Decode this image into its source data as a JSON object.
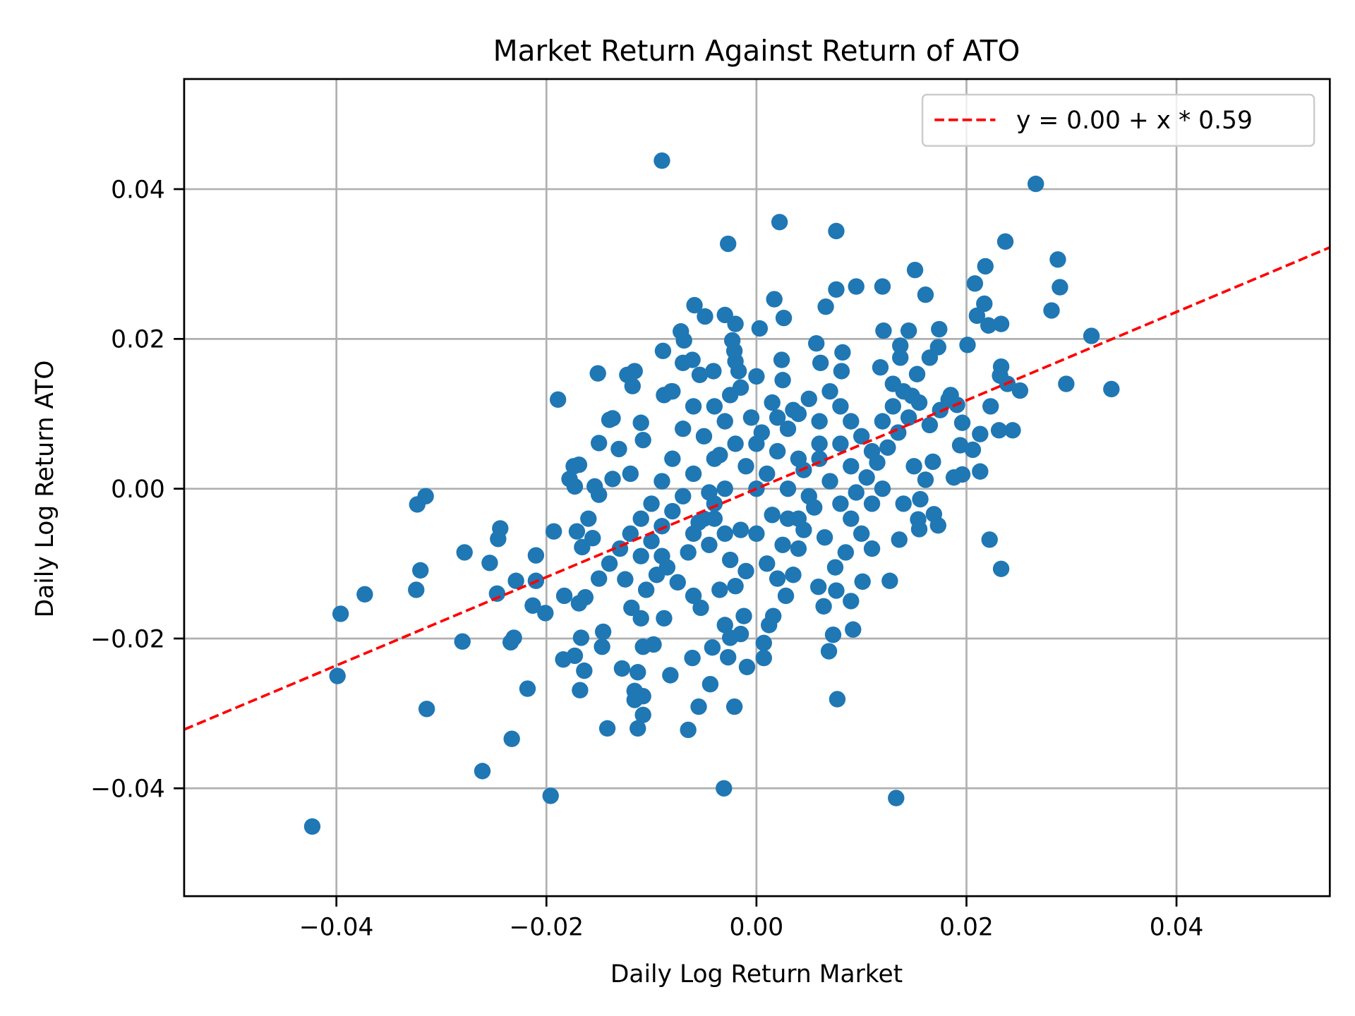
{
  "chart_data": {
    "type": "scatter",
    "title": "Market Return Against Return of ATO",
    "xlabel": "Daily Log Return Market",
    "ylabel": "Daily Log Return ATO",
    "xlim": [
      -0.0545,
      0.0546
    ],
    "ylim": [
      -0.0544,
      0.0547
    ],
    "xticks": [
      -0.04,
      -0.02,
      0.0,
      0.02,
      0.04
    ],
    "xtick_labels": [
      "−0.04",
      "−0.02",
      "0.00",
      "0.02",
      "0.04"
    ],
    "yticks": [
      -0.04,
      -0.02,
      0.0,
      0.02,
      0.04
    ],
    "ytick_labels": [
      "−0.04",
      "−0.02",
      "0.00",
      "0.02",
      "0.04"
    ],
    "grid": true,
    "legend_position": "upper-right",
    "point_color": "#1f77b4",
    "line_color": "#ff0000",
    "regression": {
      "intercept": 0.0,
      "slope": 0.59,
      "label": "y = 0.00 + x * 0.59",
      "style": "dashed"
    },
    "points": [
      [
        -0.009,
        0.0438
      ],
      [
        0.0266,
        0.0407
      ],
      [
        0.0022,
        0.0356
      ],
      [
        -0.0027,
        0.0327
      ],
      [
        0.0076,
        0.0344
      ],
      [
        0.0237,
        0.033
      ],
      [
        0.0287,
        0.0306
      ],
      [
        0.0218,
        0.0297
      ],
      [
        0.0151,
        0.0292
      ],
      [
        0.0208,
        0.0274
      ],
      [
        0.0289,
        0.0269
      ],
      [
        0.012,
        0.027
      ],
      [
        0.0095,
        0.027
      ],
      [
        0.0076,
        0.0266
      ],
      [
        0.0161,
        0.0259
      ],
      [
        0.0017,
        0.0253
      ],
      [
        -0.0059,
        0.0245
      ],
      [
        0.0066,
        0.0243
      ],
      [
        0.0217,
        0.0247
      ],
      [
        0.0281,
        0.0238
      ],
      [
        0.021,
        0.0231
      ],
      [
        0.0221,
        0.0218
      ],
      [
        0.0233,
        0.022
      ],
      [
        -0.0049,
        0.023
      ],
      [
        -0.003,
        0.0232
      ],
      [
        -0.002,
        0.022
      ],
      [
        0.0026,
        0.0228
      ],
      [
        0.0003,
        0.0214
      ],
      [
        -0.0072,
        0.021
      ],
      [
        0.0121,
        0.0211
      ],
      [
        0.0145,
        0.0211
      ],
      [
        0.0174,
        0.0213
      ],
      [
        0.0319,
        0.0204
      ],
      [
        0.0201,
        0.0192
      ],
      [
        -0.0069,
        0.0198
      ],
      [
        -0.0023,
        0.0198
      ],
      [
        0.0057,
        0.0194
      ],
      [
        0.0137,
        0.0191
      ],
      [
        0.0173,
        0.0189
      ],
      [
        -0.0089,
        0.0184
      ],
      [
        -0.0021,
        0.0184
      ],
      [
        0.0082,
        0.0182
      ],
      [
        0.0165,
        0.0175
      ],
      [
        0.0137,
        0.0175
      ],
      [
        -0.007,
        0.0168
      ],
      [
        -0.0061,
        0.0172
      ],
      [
        0.0024,
        0.0172
      ],
      [
        0.0233,
        0.0163
      ],
      [
        0.0118,
        0.0162
      ],
      [
        0.0061,
        0.0168
      ],
      [
        0.0081,
        0.0157
      ],
      [
        -0.0041,
        0.0157
      ],
      [
        -0.0054,
        0.0152
      ],
      [
        -0.0017,
        0.0157
      ],
      [
        -0.0151,
        0.0154
      ],
      [
        -0.0123,
        0.0152
      ],
      [
        -0.0116,
        0.0157
      ],
      [
        0.0232,
        0.0151
      ],
      [
        0.0153,
        0.0153
      ],
      [
        0.0239,
        0.014
      ],
      [
        0.0295,
        0.014
      ],
      [
        0.0338,
        0.0133
      ],
      [
        0.0251,
        0.0131
      ],
      [
        -0.0118,
        0.0137
      ],
      [
        0.0223,
        0.011
      ],
      [
        -0.0189,
        0.0119
      ],
      [
        -0.0088,
        0.0125
      ],
      [
        -0.0081,
        0.013
      ],
      [
        0.0183,
        0.0119
      ],
      [
        0.0191,
        0.0112
      ],
      [
        0.0148,
        0.0124
      ],
      [
        -0.0137,
        0.0094
      ],
      [
        -0.014,
        0.0092
      ],
      [
        -0.011,
        0.0088
      ],
      [
        0.0196,
        0.0088
      ],
      [
        0.0213,
        0.0073
      ],
      [
        0.0194,
        0.0058
      ],
      [
        0.0206,
        0.0052
      ],
      [
        0.0231,
        0.0078
      ],
      [
        0.0244,
        0.0078
      ],
      [
        -0.015,
        0.0061
      ],
      [
        -0.0131,
        0.0053
      ],
      [
        -0.0108,
        0.0065
      ],
      [
        0.0168,
        0.0036
      ],
      [
        0.0213,
        0.0023
      ],
      [
        0.0188,
        0.0015
      ],
      [
        0.0196,
        0.0019
      ],
      [
        -0.0169,
        0.0032
      ],
      [
        -0.0174,
        0.003
      ],
      [
        -0.0178,
        0.0013
      ],
      [
        -0.0137,
        0.0013
      ],
      [
        -0.0154,
        0.0003
      ],
      [
        -0.0173,
        0.0003
      ],
      [
        -0.0315,
        -0.001
      ],
      [
        -0.0323,
        -0.0021
      ],
      [
        -0.015,
        -0.0008
      ],
      [
        0.0161,
        0.0012
      ],
      [
        0.0156,
        -0.0014
      ],
      [
        0.0154,
        -0.0041
      ],
      [
        0.0155,
        -0.0054
      ],
      [
        0.0169,
        -0.0034
      ],
      [
        0.0173,
        -0.0049
      ],
      [
        -0.0193,
        -0.0057
      ],
      [
        -0.0244,
        -0.0053
      ],
      [
        -0.0246,
        -0.0067
      ],
      [
        -0.0171,
        -0.0057
      ],
      [
        -0.0166,
        -0.0078
      ],
      [
        -0.0156,
        -0.0066
      ],
      [
        0.0222,
        -0.0068
      ],
      [
        0.0136,
        -0.0068
      ],
      [
        -0.0278,
        -0.0085
      ],
      [
        -0.021,
        -0.0089
      ],
      [
        -0.0254,
        -0.0099
      ],
      [
        0.0233,
        -0.0107
      ],
      [
        -0.032,
        -0.0109
      ],
      [
        -0.0229,
        -0.0123
      ],
      [
        -0.021,
        -0.0123
      ],
      [
        -0.0125,
        -0.0121
      ],
      [
        0.0101,
        -0.0124
      ],
      [
        0.0127,
        -0.0123
      ],
      [
        -0.0324,
        -0.0135
      ],
      [
        -0.0247,
        -0.014
      ],
      [
        -0.0373,
        -0.0141
      ],
      [
        -0.0183,
        -0.0143
      ],
      [
        -0.0163,
        -0.0145
      ],
      [
        -0.006,
        -0.0143
      ],
      [
        0.0028,
        -0.0143
      ],
      [
        0.0059,
        -0.0131
      ],
      [
        0.0076,
        -0.0136
      ],
      [
        0.0064,
        -0.0157
      ],
      [
        0.009,
        -0.015
      ],
      [
        -0.0213,
        -0.0156
      ],
      [
        -0.0201,
        -0.0166
      ],
      [
        -0.0169,
        -0.0153
      ],
      [
        -0.0119,
        -0.0159
      ],
      [
        -0.0053,
        -0.0159
      ],
      [
        -0.0396,
        -0.0167
      ],
      [
        0.0016,
        -0.017
      ],
      [
        -0.0012,
        -0.017
      ],
      [
        -0.011,
        -0.0173
      ],
      [
        -0.0088,
        -0.0173
      ],
      [
        0.0012,
        -0.0182
      ],
      [
        -0.003,
        -0.0182
      ],
      [
        0.0092,
        -0.0188
      ],
      [
        0.0073,
        -0.0195
      ],
      [
        -0.0015,
        -0.0194
      ],
      [
        -0.0025,
        -0.0199
      ],
      [
        -0.0231,
        -0.0199
      ],
      [
        -0.0234,
        -0.0205
      ],
      [
        -0.028,
        -0.0204
      ],
      [
        -0.0146,
        -0.0191
      ],
      [
        -0.0167,
        -0.0199
      ],
      [
        -0.0098,
        -0.0208
      ],
      [
        -0.0108,
        -0.0211
      ],
      [
        -0.0147,
        -0.0211
      ],
      [
        0.0007,
        -0.0206
      ],
      [
        -0.0042,
        -0.0212
      ],
      [
        0.0069,
        -0.0217
      ],
      [
        -0.0173,
        -0.0223
      ],
      [
        -0.0184,
        -0.0228
      ],
      [
        -0.0061,
        -0.0226
      ],
      [
        0.0007,
        -0.0226
      ],
      [
        -0.0027,
        -0.0225
      ],
      [
        -0.0009,
        -0.0238
      ],
      [
        -0.0164,
        -0.0243
      ],
      [
        -0.0128,
        -0.024
      ],
      [
        -0.0113,
        -0.0245
      ],
      [
        -0.0399,
        -0.025
      ],
      [
        -0.0082,
        -0.0249
      ],
      [
        -0.0044,
        -0.0261
      ],
      [
        -0.0218,
        -0.0267
      ],
      [
        -0.0168,
        -0.0269
      ],
      [
        -0.0116,
        -0.027
      ],
      [
        -0.0108,
        -0.0277
      ],
      [
        -0.0116,
        -0.0282
      ],
      [
        0.0077,
        -0.0281
      ],
      [
        -0.0021,
        -0.0291
      ],
      [
        -0.0055,
        -0.0291
      ],
      [
        -0.0314,
        -0.0294
      ],
      [
        -0.0108,
        -0.0302
      ],
      [
        -0.0142,
        -0.032
      ],
      [
        -0.0113,
        -0.032
      ],
      [
        -0.0065,
        -0.0322
      ],
      [
        -0.0233,
        -0.0334
      ],
      [
        -0.0261,
        -0.0377
      ],
      [
        -0.0031,
        -0.04
      ],
      [
        -0.0196,
        -0.041
      ],
      [
        0.0133,
        -0.0413
      ],
      [
        -0.0423,
        -0.0451
      ],
      [
        0.0,
        0.0
      ],
      [
        0.001,
        0.002
      ],
      [
        -0.001,
        0.003
      ],
      [
        0.002,
        0.005
      ],
      [
        -0.002,
        0.006
      ],
      [
        0.003,
        0.008
      ],
      [
        -0.003,
        0.009
      ],
      [
        0.004,
        0.01
      ],
      [
        -0.004,
        0.011
      ],
      [
        0.005,
        0.012
      ],
      [
        -0.005,
        0.007
      ],
      [
        0.006,
        0.004
      ],
      [
        -0.006,
        0.002
      ],
      [
        0.007,
        0.001
      ],
      [
        -0.007,
        -0.001
      ],
      [
        0.008,
        -0.002
      ],
      [
        -0.008,
        -0.003
      ],
      [
        0.009,
        -0.004
      ],
      [
        -0.009,
        -0.005
      ],
      [
        0.01,
        -0.006
      ],
      [
        -0.01,
        -0.007
      ],
      [
        0.011,
        -0.008
      ],
      [
        -0.011,
        -0.009
      ],
      [
        0.001,
        -0.01
      ],
      [
        -0.001,
        -0.011
      ],
      [
        0.002,
        -0.012
      ],
      [
        -0.002,
        -0.013
      ],
      [
        0.003,
        -0.004
      ],
      [
        -0.003,
        -0.006
      ],
      [
        0.004,
        -0.008
      ],
      [
        -0.004,
        -0.002
      ],
      [
        0.005,
        -0.001
      ],
      [
        -0.005,
        -0.004
      ],
      [
        0.006,
        0.009
      ],
      [
        -0.006,
        0.011
      ],
      [
        0.007,
        0.013
      ],
      [
        -0.007,
        0.008
      ],
      [
        0.008,
        0.006
      ],
      [
        -0.008,
        0.004
      ],
      [
        0.009,
        0.003
      ],
      [
        -0.009,
        0.001
      ],
      [
        0.01,
        0.007
      ],
      [
        -0.01,
        -0.002
      ],
      [
        0.011,
        0.005
      ],
      [
        -0.011,
        -0.004
      ],
      [
        0.012,
        0.009
      ],
      [
        -0.012,
        -0.006
      ],
      [
        0.013,
        0.011
      ],
      [
        -0.013,
        -0.008
      ],
      [
        0.014,
        0.013
      ],
      [
        0.0005,
        0.0075
      ],
      [
        -0.0005,
        0.0095
      ],
      [
        0.0015,
        0.0115
      ],
      [
        -0.0015,
        0.0135
      ],
      [
        0.0025,
        0.0145
      ],
      [
        -0.0025,
        0.0125
      ],
      [
        0.0035,
        0.0105
      ],
      [
        -0.0035,
        0.0045
      ],
      [
        0.0045,
        0.0025
      ],
      [
        -0.0045,
        -0.0005
      ],
      [
        0.0055,
        -0.0025
      ],
      [
        -0.0055,
        -0.0045
      ],
      [
        0.0065,
        -0.0065
      ],
      [
        -0.0065,
        -0.0085
      ],
      [
        0.0075,
        -0.0105
      ],
      [
        -0.0075,
        -0.0125
      ],
      [
        0.0085,
        -0.0085
      ],
      [
        -0.0085,
        -0.0105
      ],
      [
        0.0095,
        -0.0005
      ],
      [
        -0.0095,
        -0.0115
      ],
      [
        0.0105,
        0.0015
      ],
      [
        -0.0105,
        -0.0135
      ],
      [
        0.0115,
        0.0035
      ],
      [
        0.0125,
        0.0055
      ],
      [
        0.0135,
        0.0075
      ],
      [
        0.0145,
        0.0095
      ],
      [
        0.0155,
        0.0115
      ],
      [
        0.0165,
        0.0085
      ],
      [
        0.0175,
        0.0105
      ],
      [
        0.0185,
        0.0125
      ],
      [
        0.0015,
        -0.0035
      ],
      [
        -0.0015,
        -0.0055
      ],
      [
        0.0025,
        -0.0075
      ],
      [
        -0.0025,
        -0.0095
      ],
      [
        0.0035,
        -0.0115
      ],
      [
        -0.0035,
        -0.0135
      ],
      [
        0.0045,
        -0.0055
      ],
      [
        -0.0045,
        -0.0075
      ],
      [
        0.0,
        0.006
      ],
      [
        0.0,
        -0.006
      ],
      [
        0.003,
        0.0
      ],
      [
        -0.003,
        0.0
      ],
      [
        0.006,
        0.006
      ],
      [
        -0.006,
        -0.006
      ],
      [
        0.009,
        0.009
      ],
      [
        -0.009,
        -0.009
      ],
      [
        0.012,
        0.0
      ],
      [
        -0.012,
        0.002
      ],
      [
        0.004,
        0.004
      ],
      [
        -0.004,
        0.004
      ],
      [
        0.004,
        -0.004
      ],
      [
        -0.004,
        -0.004
      ],
      [
        0.008,
        0.011
      ],
      [
        -0.008,
        0.013
      ],
      [
        0.011,
        -0.002
      ],
      [
        -0.002,
        0.017
      ],
      [
        0.0,
        0.015
      ],
      [
        0.002,
        0.0095
      ],
      [
        -0.014,
        -0.01
      ],
      [
        -0.015,
        -0.012
      ],
      [
        -0.016,
        -0.004
      ],
      [
        0.015,
        0.003
      ],
      [
        0.014,
        -0.002
      ],
      [
        0.013,
        0.014
      ]
    ]
  }
}
